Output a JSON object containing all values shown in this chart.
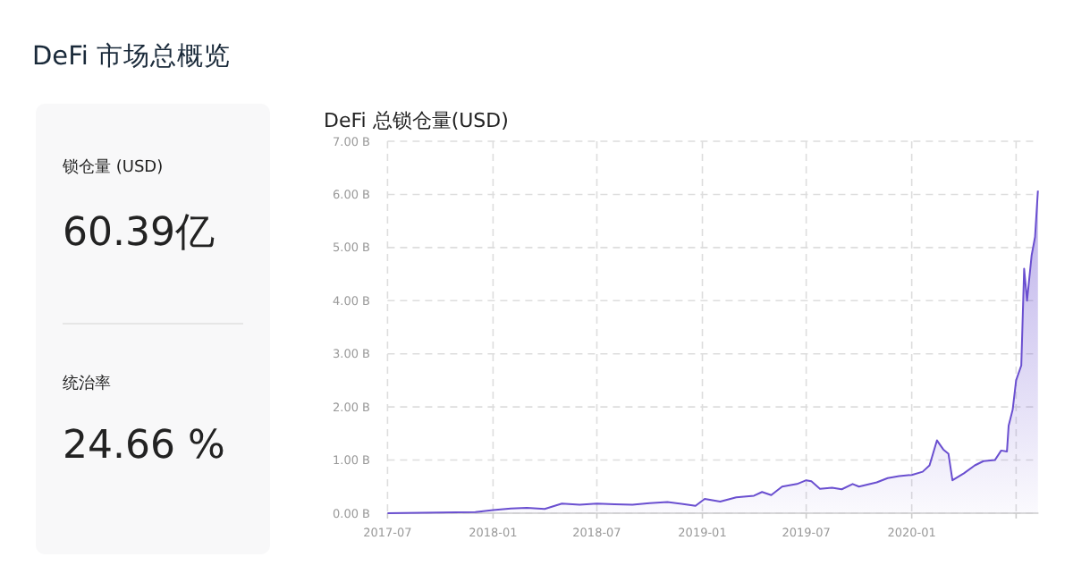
{
  "chart_data": [
    {
      "type": "other",
      "title": "DeFi 市场总概览",
      "annotations": [
        "锁仓量 (USD)",
        "60.39亿",
        "统治率",
        "24.66 %"
      ]
    },
    {
      "type": "area",
      "title": "DeFi 总锁仓量(USD)",
      "color": "#6a4fd0",
      "grid": true,
      "x": [
        "2017-07-01",
        "2017-12-01",
        "2018-01-01",
        "2018-02-01",
        "2018-03-01",
        "2018-04-01",
        "2018-05-01",
        "2018-06-01",
        "2018-07-01",
        "2018-08-01",
        "2018-09-01",
        "2018-10-01",
        "2018-11-01",
        "2018-12-01",
        "2018-12-20",
        "2019-01-05",
        "2019-02-01",
        "2019-03-01",
        "2019-04-01",
        "2019-04-15",
        "2019-05-01",
        "2019-05-20",
        "2019-06-15",
        "2019-07-01",
        "2019-07-10",
        "2019-07-25",
        "2019-08-15",
        "2019-09-01",
        "2019-09-20",
        "2019-10-01",
        "2019-11-01",
        "2019-11-20",
        "2019-12-10",
        "2020-01-01",
        "2020-01-20",
        "2020-02-01",
        "2020-02-14",
        "2020-02-25",
        "2020-03-05",
        "2020-03-12",
        "2020-04-01",
        "2020-04-20",
        "2020-05-05",
        "2020-05-25",
        "2020-06-05",
        "2020-06-15",
        "2020-06-18",
        "2020-06-25",
        "2020-07-01",
        "2020-07-10",
        "2020-07-15",
        "2020-07-20",
        "2020-07-28",
        "2020-08-03",
        "2020-08-08"
      ],
      "values": [
        0.0,
        0.02,
        0.06,
        0.09,
        0.1,
        0.08,
        0.18,
        0.16,
        0.18,
        0.17,
        0.16,
        0.19,
        0.21,
        0.17,
        0.14,
        0.27,
        0.22,
        0.3,
        0.33,
        0.4,
        0.34,
        0.5,
        0.55,
        0.62,
        0.6,
        0.46,
        0.48,
        0.45,
        0.55,
        0.5,
        0.58,
        0.66,
        0.7,
        0.72,
        0.78,
        0.9,
        1.37,
        1.2,
        1.12,
        0.62,
        0.75,
        0.9,
        0.98,
        1.0,
        1.18,
        1.16,
        1.65,
        1.95,
        2.5,
        2.78,
        4.6,
        4.0,
        4.85,
        5.2,
        6.07
      ],
      "xlim": [
        "2017-07-01",
        "2020-08-09"
      ],
      "xticks": [
        "2017-07",
        "2018-01",
        "2018-07",
        "2019-01",
        "2019-07",
        "2020-01",
        {
          "value": "2020-07",
          "label": null
        }
      ],
      "ylim": [
        0,
        7
      ],
      "yticks": [
        {
          "value": 0,
          "label": "0.00 B"
        },
        {
          "value": 1,
          "label": "1.00 B"
        },
        {
          "value": 2,
          "label": "2.00 B"
        },
        {
          "value": 3,
          "label": "3.00 B"
        },
        {
          "value": 4,
          "label": "4.00 B"
        },
        {
          "value": 5,
          "label": "5.00 B"
        },
        {
          "value": 6,
          "label": "6.00 B"
        },
        {
          "value": 7,
          "label": "7.00 B"
        }
      ]
    }
  ]
}
